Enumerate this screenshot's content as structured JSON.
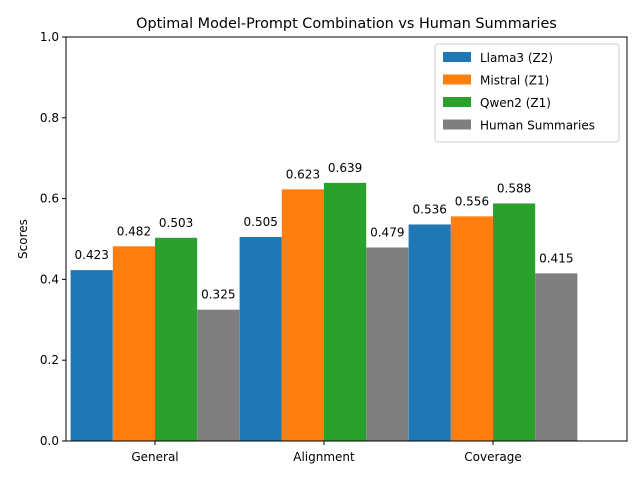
{
  "chart_data": {
    "type": "bar",
    "title": "Optimal Model-Prompt Combination vs Human Summaries",
    "xlabel": "",
    "ylabel": "Scores",
    "ylim": [
      0,
      1.0
    ],
    "yticks": [
      "0.0",
      "0.2",
      "0.4",
      "0.6",
      "0.8",
      "1.0"
    ],
    "categories": [
      "General",
      "Alignment",
      "Coverage"
    ],
    "grid": false,
    "legend_position": "top-right",
    "series": [
      {
        "name": "Llama3 (Z2)",
        "color": "#1f77b4",
        "values": [
          0.423,
          0.505,
          0.536
        ],
        "labels": [
          "0.423",
          "0.505",
          "0.536"
        ]
      },
      {
        "name": "Mistral (Z1)",
        "color": "#ff7f0e",
        "values": [
          0.482,
          0.623,
          0.556
        ],
        "labels": [
          "0.482",
          "0.623",
          "0.556"
        ]
      },
      {
        "name": "Qwen2 (Z1)",
        "color": "#2ca02c",
        "values": [
          0.503,
          0.639,
          0.588
        ],
        "labels": [
          "0.503",
          "0.639",
          "0.588"
        ]
      },
      {
        "name": "Human Summaries",
        "color": "#7f7f7f",
        "values": [
          0.325,
          0.479,
          0.415
        ],
        "labels": [
          "0.325",
          "0.479",
          "0.415"
        ]
      }
    ]
  }
}
